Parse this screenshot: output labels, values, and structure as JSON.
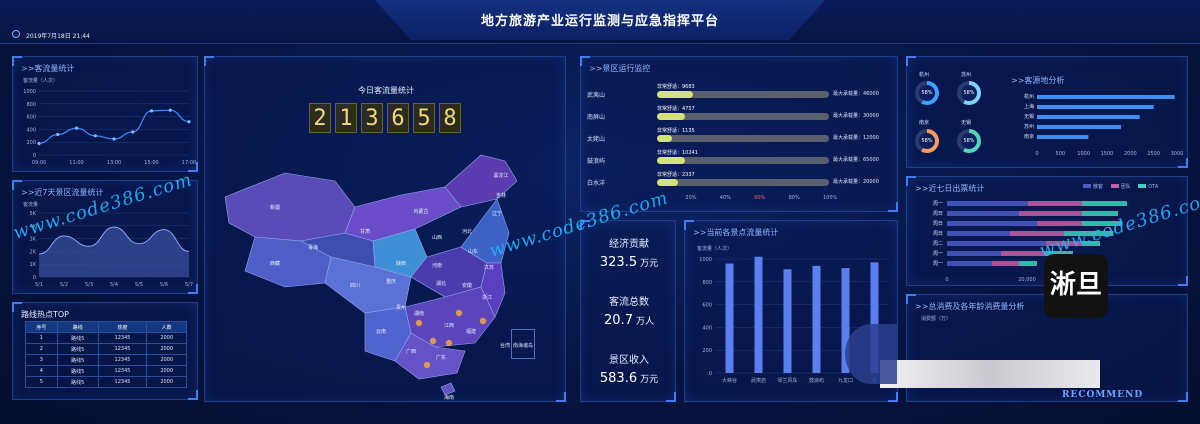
{
  "header": {
    "title": "地方旅游产业运行监测与应急指挥平台",
    "datetime": "2019年7月18日  21:44"
  },
  "colors": {
    "accent": "#3f7df0",
    "digit": "#f3d873",
    "bar": "#d4e27a",
    "barTrack": "#5a5f6d",
    "column": "#5b7ff0"
  },
  "visitor_stats": {
    "title": ">>客流量统计",
    "unit": "客流量（人次）",
    "y_ticks": [
      "1000",
      "800",
      "600",
      "400",
      "200",
      "0"
    ],
    "x_ticks": [
      "09:00",
      "11:00",
      "13:00",
      "15:00",
      "17:00"
    ],
    "chart_data": {
      "type": "line",
      "x": [
        "09:00",
        "10:00",
        "11:00",
        "12:00",
        "13:00",
        "14:00",
        "15:00",
        "16:00",
        "17:00"
      ],
      "values": [
        180,
        320,
        420,
        300,
        250,
        360,
        690,
        700,
        520
      ],
      "ylim": [
        0,
        1000
      ]
    }
  },
  "week_stats": {
    "title": ">>近7天景区流量统计",
    "unit": "客流量",
    "y_ticks": [
      "5K",
      "4K",
      "3K",
      "2K",
      "1K",
      "0"
    ],
    "x_ticks": [
      "5/1",
      "5/2",
      "5/3",
      "5/4",
      "5/5",
      "5/6",
      "5/7"
    ],
    "chart_data": {
      "type": "area",
      "x": [
        "5/1",
        "5/2",
        "5/3",
        "5/4",
        "5/5",
        "5/6",
        "5/7"
      ],
      "values": [
        1800,
        3200,
        2400,
        3900,
        2600,
        3700,
        2000
      ],
      "ylim": [
        0,
        5000
      ]
    }
  },
  "route_top": {
    "title": "路线热点TOP",
    "columns": [
      "序号",
      "路线",
      "热度",
      "人数"
    ],
    "rows": [
      [
        "1",
        "路线5",
        "12345",
        "2000"
      ],
      [
        "2",
        "路线5",
        "12345",
        "2000"
      ],
      [
        "3",
        "路线5",
        "12345",
        "2000"
      ],
      [
        "4",
        "路线5",
        "12345",
        "2000"
      ],
      [
        "5",
        "路线5",
        "12345",
        "2000"
      ]
    ]
  },
  "today": {
    "title": "今日客流量统计",
    "digits": [
      "2",
      "1",
      "3",
      "6",
      "5",
      "8"
    ]
  },
  "map": {
    "labels": [
      "黑龙江",
      "吉林",
      "辽宁",
      "新疆",
      "西藏",
      "青海",
      "甘肃",
      "内蒙古",
      "四川",
      "重庆",
      "云南",
      "贵州",
      "广西",
      "广东",
      "江西",
      "湖南",
      "湖北",
      "河南",
      "山东",
      "江苏",
      "浙江",
      "福建",
      "安徽",
      "陕西",
      "山西",
      "河北",
      "台湾",
      "海南"
    ],
    "inset_label": "南海诸岛"
  },
  "scenic": {
    "title": ">>景区运行监控",
    "rows": [
      {
        "name": "武夷山",
        "status": "非常舒适：9683",
        "max": "最大承载量：46000",
        "fill": 0.21
      },
      {
        "name": "南屏山",
        "status": "非常舒适：4757",
        "max": "最大承载量：30000",
        "fill": 0.16
      },
      {
        "name": "太姥山",
        "status": "非常舒适：1135",
        "max": "最大承载量：12000",
        "fill": 0.09
      },
      {
        "name": "鼓浪屿",
        "status": "非常舒适：10241",
        "max": "最大承载量：65000",
        "fill": 0.16
      },
      {
        "name": "白水洋",
        "status": "非常舒适：2337",
        "max": "最大承载量：20000",
        "fill": 0.12
      }
    ],
    "x_ticks": [
      "20%",
      "40%",
      "60%",
      "80%",
      "100%"
    ]
  },
  "economy": {
    "items": [
      {
        "label": "经济贡献",
        "value": "323.5",
        "unit": "万元"
      },
      {
        "label": "客流总数",
        "value": "20.7",
        "unit": "万人"
      },
      {
        "label": "景区收入",
        "value": "583.6",
        "unit": "万元"
      }
    ]
  },
  "current_flow": {
    "title": ">>当前各景点流量统计",
    "unit": "客流量（人次）",
    "y_ticks": [
      "1000",
      "800",
      "600",
      "400",
      "200",
      "0"
    ],
    "chart_data": {
      "type": "bar",
      "categories": [
        "大峡谷",
        "武夷岩",
        "琴兰风车",
        "鼓浪屿",
        "九龙口",
        "龙"
      ],
      "values": [
        960,
        1020,
        910,
        940,
        920,
        970
      ],
      "ylim": [
        0,
        1000
      ]
    }
  },
  "origin": {
    "title": ">>客源地分析",
    "gauges": [
      {
        "city": "杭州",
        "pct": "58%",
        "color": "#3fa0ff"
      },
      {
        "city": "苏州",
        "pct": "58%",
        "color": "#7fd0ff"
      },
      {
        "city": "南京",
        "pct": "58%",
        "color": "#ff9b5a"
      },
      {
        "city": "无锡",
        "pct": "58%",
        "color": "#55d6b8"
      }
    ],
    "chart_data": {
      "type": "bar",
      "categories": [
        "杭州",
        "上海",
        "无锡",
        "苏州",
        "南京"
      ],
      "values": [
        2950,
        2500,
        2200,
        1800,
        1100
      ],
      "xlim": [
        0,
        3000
      ]
    },
    "x_ticks": [
      "0",
      "500",
      "1000",
      "1500",
      "2000",
      "2500",
      "3000"
    ]
  },
  "week_out": {
    "title": ">>近七日出票统计",
    "legend": [
      "散客",
      "团队",
      "OTA"
    ],
    "days": [
      "周一",
      "周日",
      "周日",
      "周日",
      "周二",
      "周一",
      "周一"
    ],
    "x_ticks": [
      "0",
      "20,000"
    ]
  },
  "consume": {
    "title": ">>总消费及各年龄消费量分析",
    "unit": "消费额（万）"
  },
  "watermarks": [
    "www.code386.com",
    "www.code386.com",
    "www.code386.com"
  ],
  "logo": {
    "text": "淅旦",
    "footer": "RECOMMEND"
  }
}
